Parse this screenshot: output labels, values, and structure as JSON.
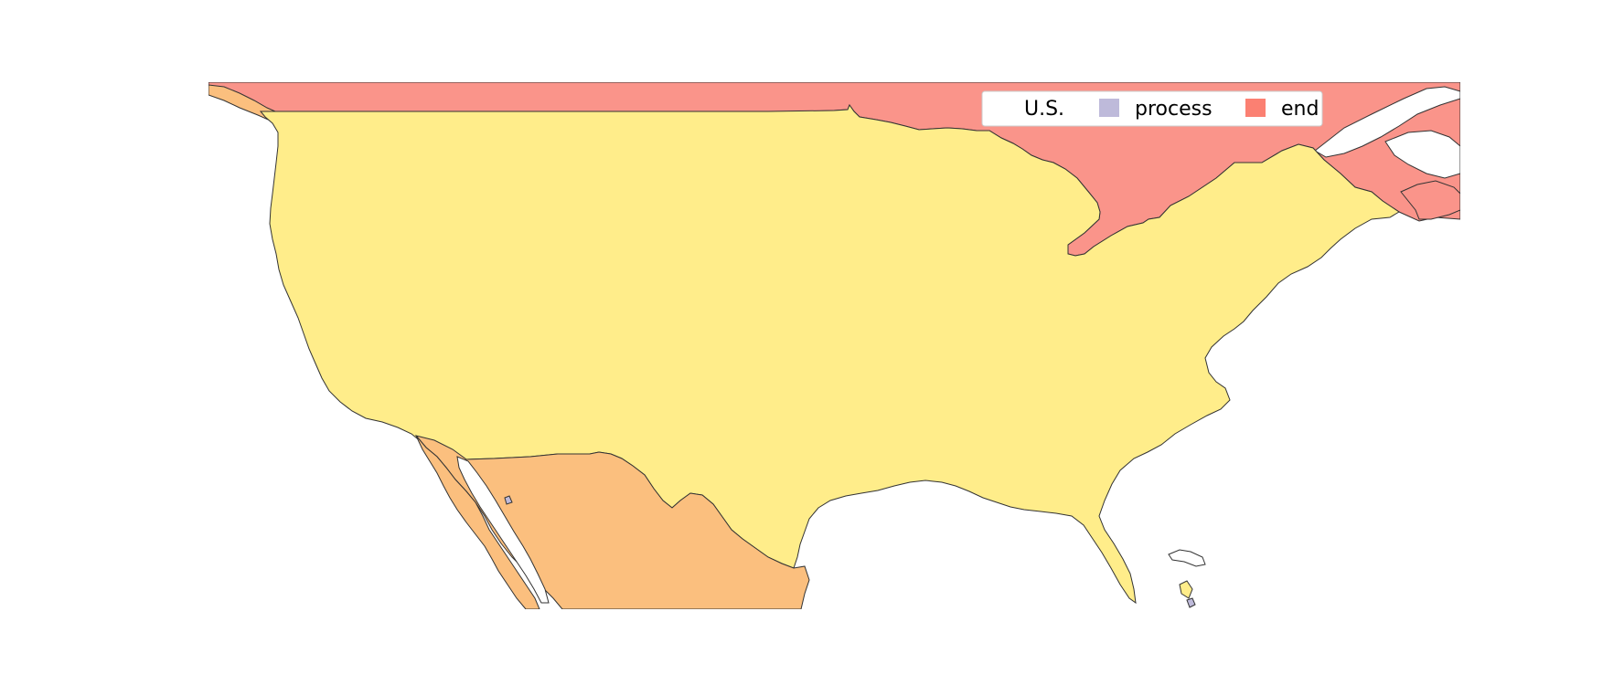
{
  "legend": {
    "title": "U.S.",
    "items": [
      {
        "label": "process",
        "color": "#bebada"
      },
      {
        "label": "end",
        "color": "#fb8072"
      }
    ]
  },
  "regions": [
    {
      "name": "United States",
      "color": "#ffed8a"
    },
    {
      "name": "Canada",
      "color": "#fa948a"
    },
    {
      "name": "Mexico",
      "color": "#fbbf7e"
    },
    {
      "name": "Caribbean islands",
      "color": "#ffed8a"
    }
  ],
  "colors": {
    "background": "#ffffff",
    "border": "#333333",
    "legend_frame": "#cccccc"
  }
}
